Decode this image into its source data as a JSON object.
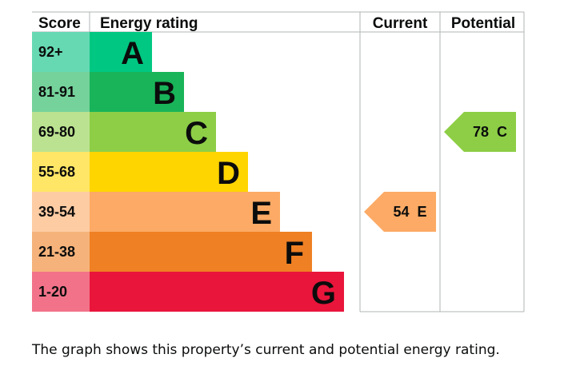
{
  "chart_data": {
    "type": "bar",
    "headers": {
      "score": "Score",
      "rating": "Energy rating",
      "current": "Current",
      "potential": "Potential"
    },
    "bands": [
      {
        "score": "92+",
        "letter": "A",
        "color": "#00c781",
        "score_bg": "#66d9b3"
      },
      {
        "score": "81-91",
        "letter": "B",
        "color": "#19b459",
        "score_bg": "#75d29b"
      },
      {
        "score": "69-80",
        "letter": "C",
        "color": "#8dce46",
        "score_bg": "#bbe290"
      },
      {
        "score": "55-68",
        "letter": "D",
        "color": "#ffd500",
        "score_bg": "#ffe666"
      },
      {
        "score": "39-54",
        "letter": "E",
        "color": "#fcaa65",
        "score_bg": "#fdcca3"
      },
      {
        "score": "21-38",
        "letter": "F",
        "color": "#ef8023",
        "score_bg": "#f5b37b"
      },
      {
        "score": "1-20",
        "letter": "G",
        "color": "#e9153b",
        "score_bg": "#f27389"
      }
    ],
    "current": {
      "value": 54,
      "letter": "E",
      "label": "54  E",
      "color": "#fcaa65"
    },
    "potential": {
      "value": 78,
      "letter": "C",
      "label": "78  C",
      "color": "#8dce46"
    }
  },
  "caption": "The graph shows this property’s current and potential energy rating."
}
